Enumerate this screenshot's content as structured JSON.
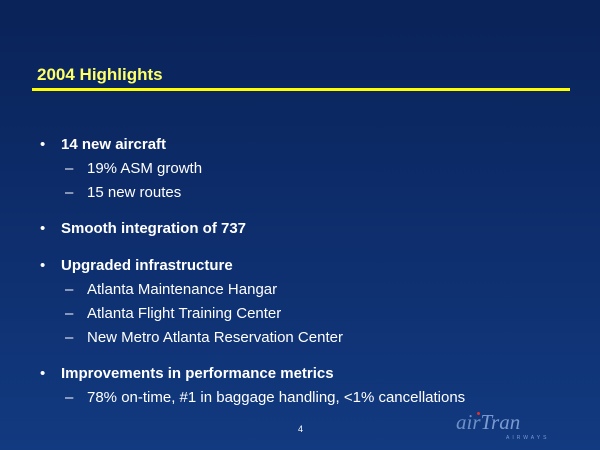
{
  "slide": {
    "title": "2004 Highlights",
    "bullets": [
      {
        "text": "14 new aircraft",
        "subs": [
          "19% ASM growth",
          "15 new routes"
        ]
      },
      {
        "text": "Smooth integration of 737",
        "subs": []
      },
      {
        "text": "Upgraded infrastructure",
        "subs": [
          "Atlanta Maintenance Hangar",
          "Atlanta Flight Training Center",
          "New Metro Atlanta Reservation Center"
        ]
      },
      {
        "text": "Improvements in performance metrics",
        "subs": [
          "78% on-time, #1 in baggage handling, <1% cancellations"
        ]
      }
    ],
    "bullet_glyph": "•",
    "dash_glyph": "–",
    "page_number": "4",
    "logo": {
      "part1": "air",
      "part2": "Tran",
      "tagline": "AIRWAYS"
    },
    "colors": {
      "background": "#0d2c6a",
      "title": "#ffff66",
      "rule": "#ffff00",
      "text": "#ffffff",
      "logo": "#6f90c4"
    }
  }
}
